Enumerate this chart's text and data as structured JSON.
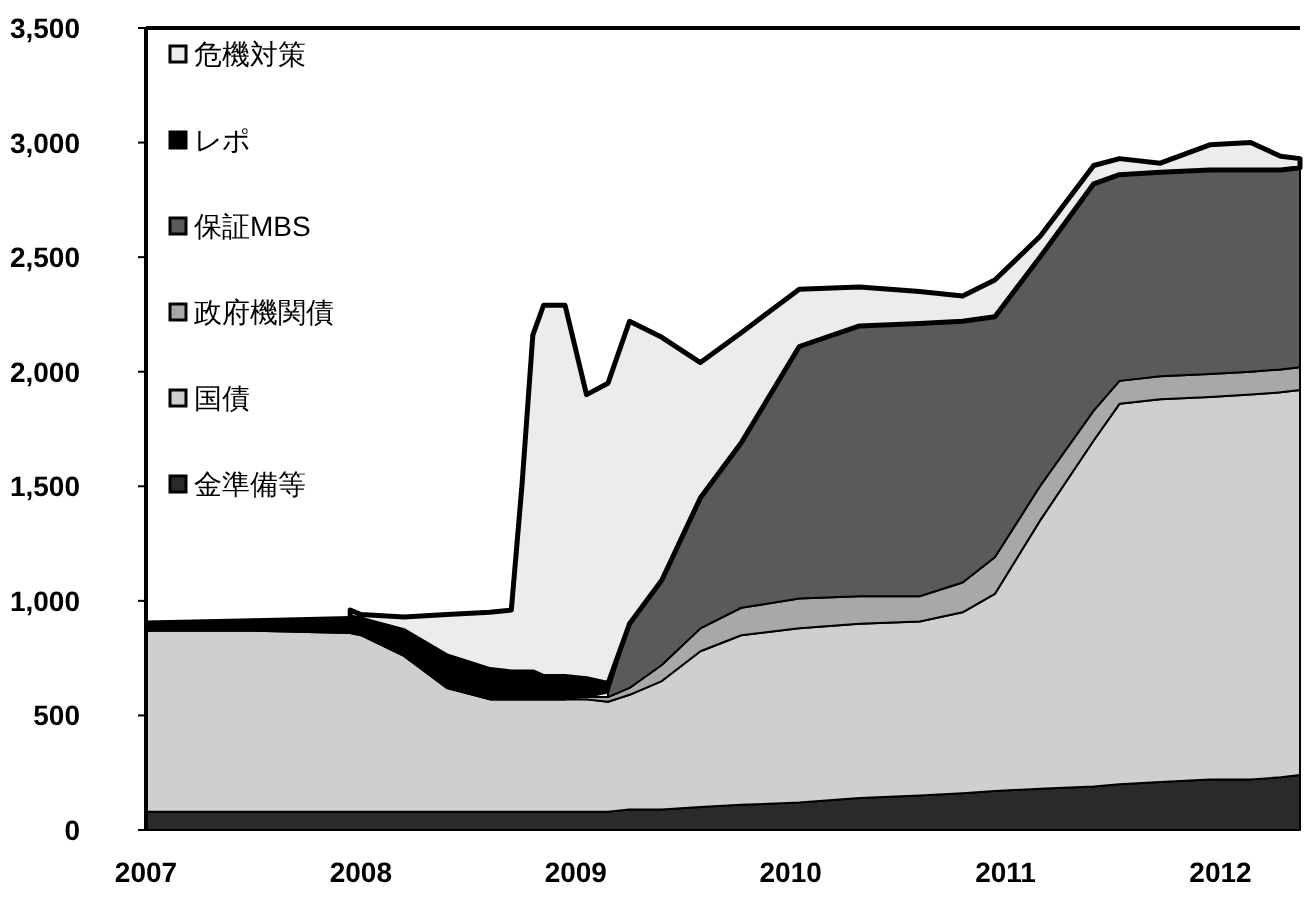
{
  "chart_data": {
    "type": "area",
    "stacked": true,
    "legend": "top left",
    "grid": false,
    "x": [
      2007.0,
      2007.5,
      2007.95,
      2008.0,
      2008.2,
      2008.4,
      2008.6,
      2008.7,
      2008.75,
      2008.8,
      2008.85,
      2008.95,
      2009.05,
      2009.15,
      2009.25,
      2009.4,
      2009.58,
      2009.77,
      2010.04,
      2010.32,
      2010.6,
      2010.8,
      2010.95,
      2011.16,
      2011.41,
      2011.53,
      2011.72,
      2011.95,
      2012.14,
      2012.28,
      2012.37
    ],
    "series": [
      {
        "name": "金準備等",
        "color": "#2a2a2a",
        "values": [
          80,
          80,
          80,
          80,
          80,
          80,
          80,
          80,
          80,
          80,
          80,
          80,
          80,
          80,
          90,
          90,
          100,
          110,
          120,
          140,
          150,
          160,
          170,
          180,
          190,
          200,
          210,
          220,
          220,
          230,
          240
        ]
      },
      {
        "name": "国債",
        "color": "#cfcfcf",
        "values": [
          790,
          790,
          780,
          770,
          680,
          540,
          490,
          490,
          490,
          490,
          490,
          490,
          490,
          480,
          500,
          560,
          680,
          740,
          760,
          760,
          760,
          790,
          860,
          1170,
          1510,
          1660,
          1670,
          1670,
          1680,
          1680,
          1680
        ]
      },
      {
        "name": "政府機関債",
        "color": "#a8a8a8",
        "values": [
          null,
          null,
          null,
          null,
          null,
          null,
          null,
          null,
          null,
          null,
          null,
          null,
          10,
          20,
          30,
          70,
          100,
          120,
          130,
          120,
          110,
          130,
          160,
          150,
          130,
          100,
          100,
          100,
          100,
          100,
          100
        ]
      },
      {
        "name": "保証MBS",
        "color": "#5a5a5a",
        "values": [
          null,
          null,
          null,
          null,
          null,
          null,
          null,
          null,
          null,
          null,
          null,
          null,
          null,
          20,
          280,
          370,
          570,
          720,
          1100,
          1180,
          1190,
          1140,
          1050,
          1000,
          990,
          900,
          890,
          890,
          880,
          870,
          870
        ]
      },
      {
        "name": "レポ",
        "color": "#000000",
        "values": [
          40,
          50,
          70,
          70,
          110,
          140,
          130,
          120,
          120,
          120,
          100,
          100,
          80,
          40,
          null,
          null,
          null,
          null,
          null,
          null,
          null,
          null,
          null,
          null,
          null,
          null,
          null,
          null,
          null,
          null,
          null
        ]
      },
      {
        "name": "危機対策",
        "color": "#ececec",
        "values": [
          null,
          null,
          30,
          20,
          60,
          180,
          250,
          270,
          820,
          1470,
          1620,
          1620,
          1240,
          1310,
          1320,
          1060,
          590,
          480,
          250,
          170,
          140,
          110,
          160,
          90,
          80,
          70,
          40,
          110,
          120,
          60,
          40
        ]
      }
    ],
    "xlim": [
      2007,
      2012.37
    ],
    "xticks": [
      2007,
      2008,
      2009,
      2010,
      2011,
      2012
    ],
    "ylim": [
      0,
      3500
    ],
    "yticks": [
      0,
      {
        "value": 500,
        "label": "500"
      },
      {
        "value": 1000,
        "label": "1,000"
      },
      {
        "value": 1500,
        "label": "1,500"
      },
      {
        "value": 2000,
        "label": "2,000"
      },
      {
        "value": 2500,
        "label": "2,500"
      },
      {
        "value": 3000,
        "label": "3,000"
      },
      {
        "value": 3500,
        "label": "3,500"
      }
    ]
  }
}
